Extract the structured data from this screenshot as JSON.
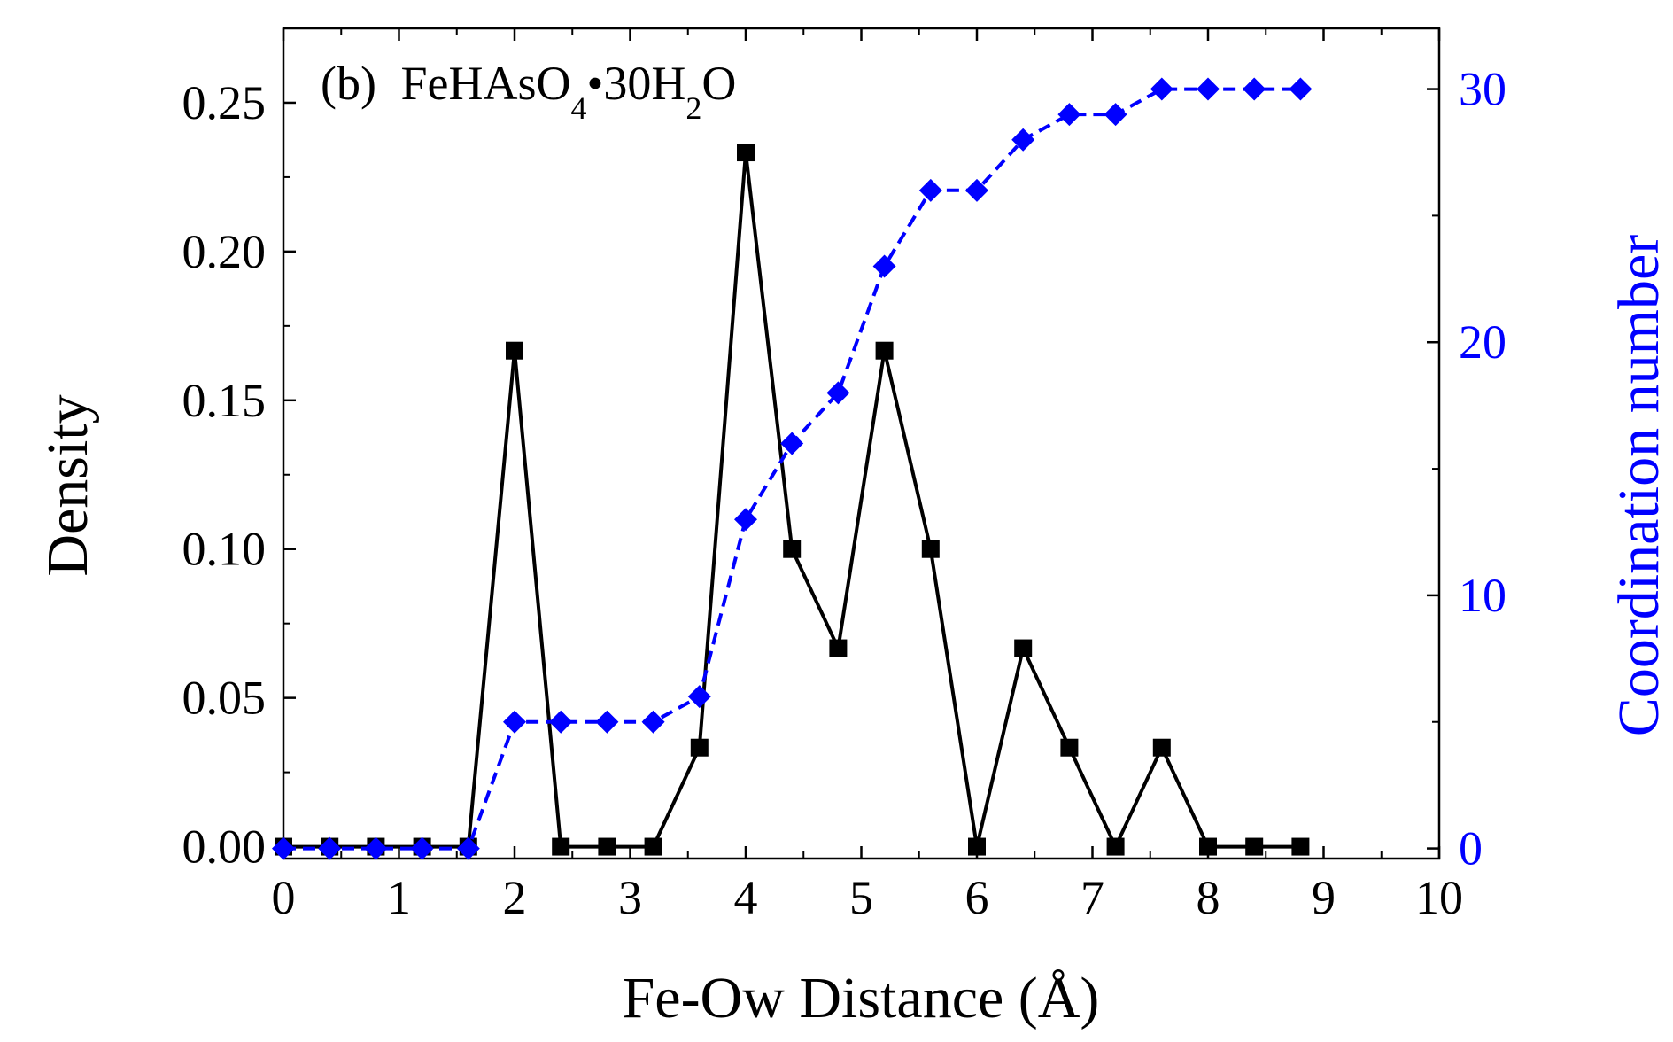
{
  "chart_data": {
    "type": "line",
    "title": "(b) FeHAsO4•30H2O",
    "title_parts": {
      "label": "(b)",
      "formula_a": "FeHAsO",
      "sub_a": "4",
      "bullet": "•",
      "formula_b": "30H",
      "sub_b": "2",
      "formula_c": "O"
    },
    "xlabel": "Fe-Ow Distance (Å)",
    "ylabel_left": "Density",
    "ylabel_right": "Coordination number",
    "xlim": [
      0,
      10
    ],
    "ylim_left": [
      -0.004,
      0.275
    ],
    "ylim_right": [
      -0.4,
      32.4
    ],
    "x_ticks": [
      "0",
      "1",
      "2",
      "3",
      "4",
      "5",
      "6",
      "7",
      "8",
      "9",
      "10"
    ],
    "y_left_ticks": [
      "0.00",
      "0.05",
      "0.10",
      "0.15",
      "0.20",
      "0.25"
    ],
    "y_right_ticks": [
      "0",
      "10",
      "20",
      "30"
    ],
    "grid": false,
    "colors": {
      "density": "#000000",
      "coordination": "#0000ff",
      "axis": "#000000",
      "right_axis": "#0000ff"
    },
    "series": [
      {
        "name": "Density",
        "axis": "left",
        "marker": "square",
        "line": "solid",
        "x": [
          0,
          0.4,
          0.8,
          1.2,
          1.6,
          2.0,
          2.4,
          2.8,
          3.2,
          3.6,
          4.0,
          4.4,
          4.8,
          5.2,
          5.6,
          6.0,
          6.4,
          6.8,
          7.2,
          7.6,
          8.0,
          8.4,
          8.8
        ],
        "values": [
          0,
          0,
          0,
          0,
          0,
          0.1667,
          0,
          0,
          0,
          0.0333,
          0.2333,
          0.1,
          0.0667,
          0.1667,
          0.1,
          0,
          0.0667,
          0.0333,
          0,
          0.0333,
          0,
          0,
          0
        ]
      },
      {
        "name": "Coordination number",
        "axis": "right",
        "marker": "diamond",
        "line": "dashed",
        "x": [
          0,
          0.4,
          0.8,
          1.2,
          1.6,
          2.0,
          2.4,
          2.8,
          3.2,
          3.6,
          4.0,
          4.4,
          4.8,
          5.2,
          5.6,
          6.0,
          6.4,
          6.8,
          7.2,
          7.6,
          8.0,
          8.4,
          8.8
        ],
        "values": [
          0,
          0,
          0,
          0,
          0,
          5,
          5,
          5,
          5,
          6,
          13,
          16,
          18,
          23,
          26,
          26,
          28,
          29,
          29,
          30,
          30,
          30,
          30
        ]
      }
    ]
  }
}
